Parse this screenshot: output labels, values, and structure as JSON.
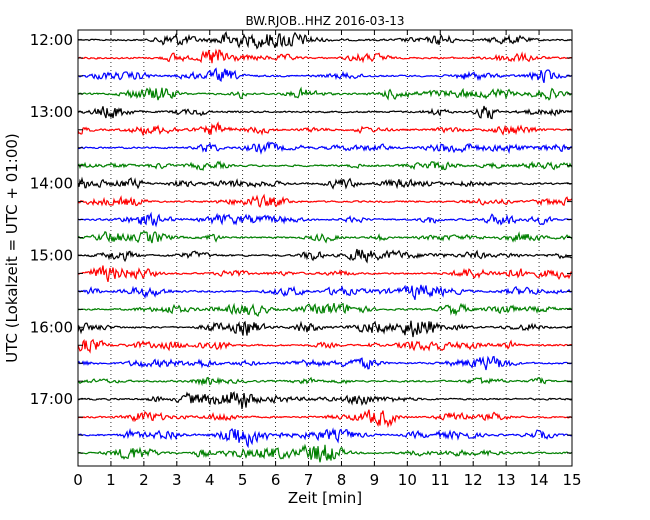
{
  "chart_data": {
    "type": "line",
    "title": "BW.RJOB..HHZ 2016-03-13",
    "xlabel": "Zeit  [min]",
    "ylabel": "UTC (Lokalzeit = UTC + 01:00)",
    "xlim": [
      0,
      15
    ],
    "x_ticks": [
      "0",
      "1",
      "2",
      "3",
      "4",
      "5",
      "6",
      "7",
      "8",
      "9",
      "10",
      "11",
      "12",
      "13",
      "14",
      "15"
    ],
    "y_tick_labels": [
      "12:00",
      "13:00",
      "14:00",
      "15:00",
      "16:00",
      "17:00"
    ],
    "grid": "vertical dotted lines at each minute",
    "trace_interval_minutes": 15,
    "trace_colors": [
      "#000000",
      "#ff0000",
      "#0000ff",
      "#008000"
    ],
    "traces": [
      {
        "start": "12:00",
        "color": "#000000"
      },
      {
        "start": "12:15",
        "color": "#ff0000"
      },
      {
        "start": "12:30",
        "color": "#0000ff"
      },
      {
        "start": "12:45",
        "color": "#008000"
      },
      {
        "start": "13:00",
        "color": "#000000"
      },
      {
        "start": "13:15",
        "color": "#ff0000"
      },
      {
        "start": "13:30",
        "color": "#0000ff"
      },
      {
        "start": "13:45",
        "color": "#008000"
      },
      {
        "start": "14:00",
        "color": "#000000"
      },
      {
        "start": "14:15",
        "color": "#ff0000"
      },
      {
        "start": "14:30",
        "color": "#0000ff"
      },
      {
        "start": "14:45",
        "color": "#008000"
      },
      {
        "start": "15:00",
        "color": "#000000"
      },
      {
        "start": "15:15",
        "color": "#ff0000"
      },
      {
        "start": "15:30",
        "color": "#0000ff"
      },
      {
        "start": "15:45",
        "color": "#008000"
      },
      {
        "start": "16:00",
        "color": "#000000"
      },
      {
        "start": "16:15",
        "color": "#ff0000"
      },
      {
        "start": "16:30",
        "color": "#0000ff"
      },
      {
        "start": "16:45",
        "color": "#008000"
      },
      {
        "start": "17:00",
        "color": "#000000"
      },
      {
        "start": "17:15",
        "color": "#ff0000"
      },
      {
        "start": "17:30",
        "color": "#0000ff"
      },
      {
        "start": "17:45",
        "color": "#008000"
      }
    ]
  }
}
